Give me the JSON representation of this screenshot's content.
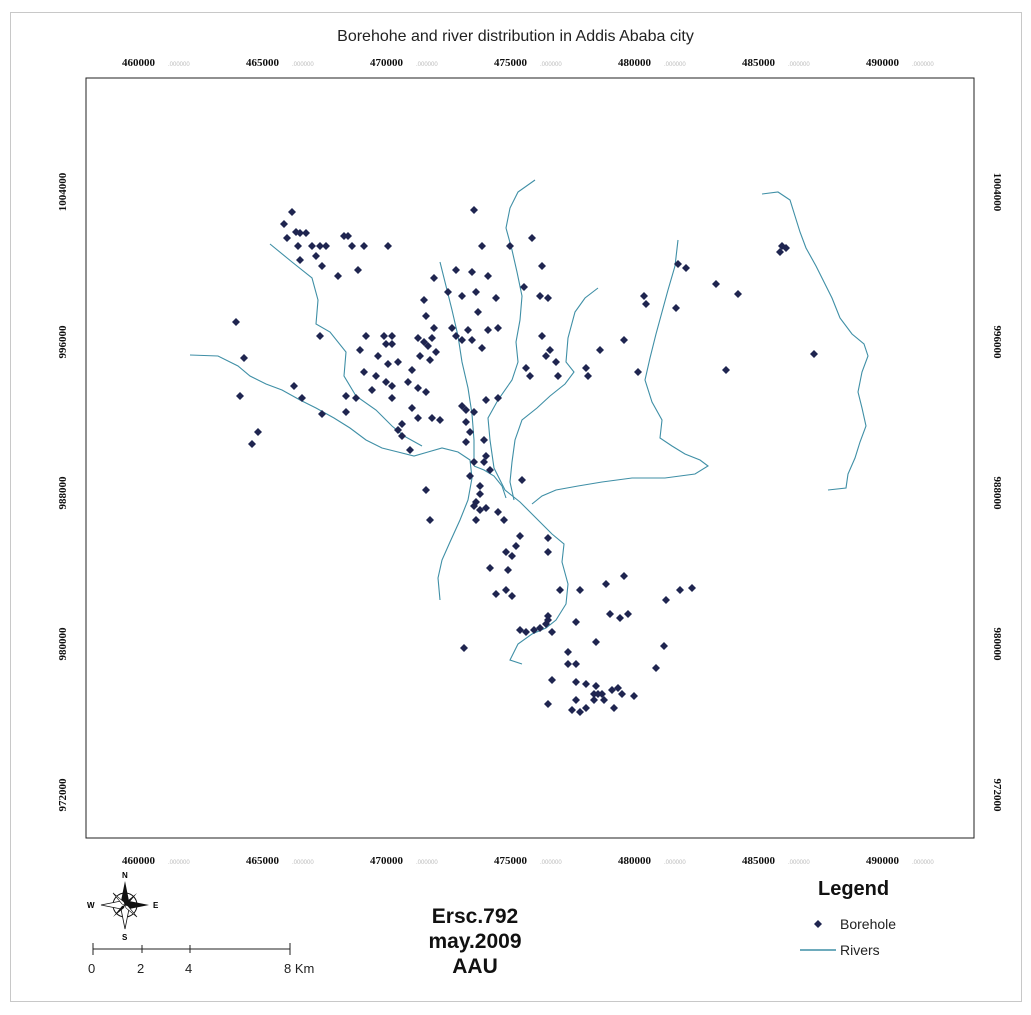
{
  "map": {
    "title": "Borehohe and river distribution in Addis Ababa city",
    "x_ticks": [
      "460000",
      "465000",
      "470000",
      "475000",
      "480000",
      "485000",
      "490000"
    ],
    "y_ticks": [
      "1004000",
      "996000",
      "988000",
      "980000",
      "972000"
    ],
    "tick_decimals": ".000000",
    "colors": {
      "borehole": "#1f2550",
      "river": "#3f8fa6",
      "frame": "#222222"
    }
  },
  "credits": {
    "line1": "Ersc.792",
    "line2": "may.2009",
    "line3": "AAU"
  },
  "legend": {
    "title": "Legend",
    "items": [
      {
        "label": "Borehole",
        "symbol": "diamond"
      },
      {
        "label": "Rivers",
        "symbol": "line"
      }
    ]
  },
  "scale_bar": {
    "labels": [
      "0",
      "2",
      "4",
      "8 Km"
    ]
  },
  "north_arrow": {
    "labels": [
      "N",
      "E",
      "S",
      "W"
    ],
    "icon": "compass-rose-icon"
  }
}
